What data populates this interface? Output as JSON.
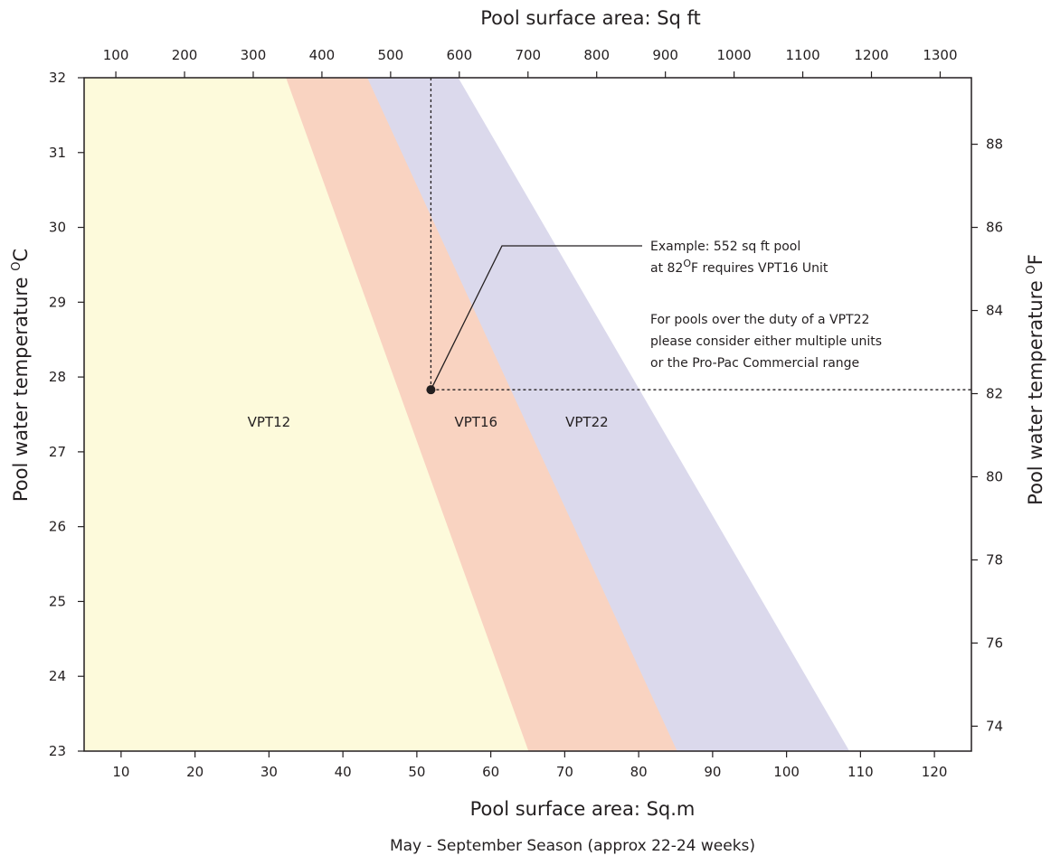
{
  "chart_data": {
    "type": "area",
    "x_axis": {
      "label": "Pool surface area: Sq.m",
      "range": [
        5,
        125
      ],
      "ticks": [
        10,
        20,
        30,
        40,
        50,
        60,
        70,
        80,
        90,
        100,
        110,
        120
      ]
    },
    "x_axis_top": {
      "label": "Pool surface area: Sq ft",
      "ticks": [
        100,
        200,
        300,
        400,
        500,
        600,
        700,
        800,
        900,
        1000,
        1100,
        1200,
        1300
      ]
    },
    "y_axis": {
      "label_main": "Pool water temperature ",
      "label_unit": "O",
      "label_tail": "C",
      "range": [
        23,
        32
      ],
      "ticks": [
        23,
        24,
        25,
        26,
        27,
        28,
        29,
        30,
        31,
        32
      ]
    },
    "y_axis_right": {
      "label_main": "Pool water temperature ",
      "label_unit": "O",
      "label_tail": "F",
      "ticks": [
        74,
        76,
        78,
        80,
        82,
        84,
        86,
        88
      ]
    },
    "bands": [
      {
        "name": "VPT12",
        "color": "#fdfadb",
        "top_x": 32.3,
        "bottom_x": 65.1
      },
      {
        "name": "VPT16",
        "color": "#f9d3c1",
        "top_x": 43.3,
        "bottom_x": 85.2
      },
      {
        "name": "VPT22",
        "color": "#dbd9ec",
        "top_x": 55.6,
        "bottom_x": 108.5
      }
    ],
    "band_labels": [
      {
        "text": "VPT12",
        "x": 30,
        "y": 27.4
      },
      {
        "text": "VPT16",
        "x": 58,
        "y": 27.4
      },
      {
        "text": "VPT22",
        "x": 73,
        "y": 27.4
      }
    ],
    "example_point": {
      "x": 51.9,
      "y": 27.83,
      "sqft": 552,
      "fahrenheit": 82
    },
    "annotations": {
      "example_line1": "Example: 552 sq ft pool",
      "example_line2_a": "at 82",
      "example_line2_sup": "O",
      "example_line2_b": "F requires VPT16 Unit",
      "note_line1": "For pools over the duty of a VPT22",
      "note_line2": "please consider either multiple units",
      "note_line3": "or the Pro-Pac Commercial range"
    },
    "caption": "May - September Season (approx 22-24 weeks)",
    "grid": false
  }
}
